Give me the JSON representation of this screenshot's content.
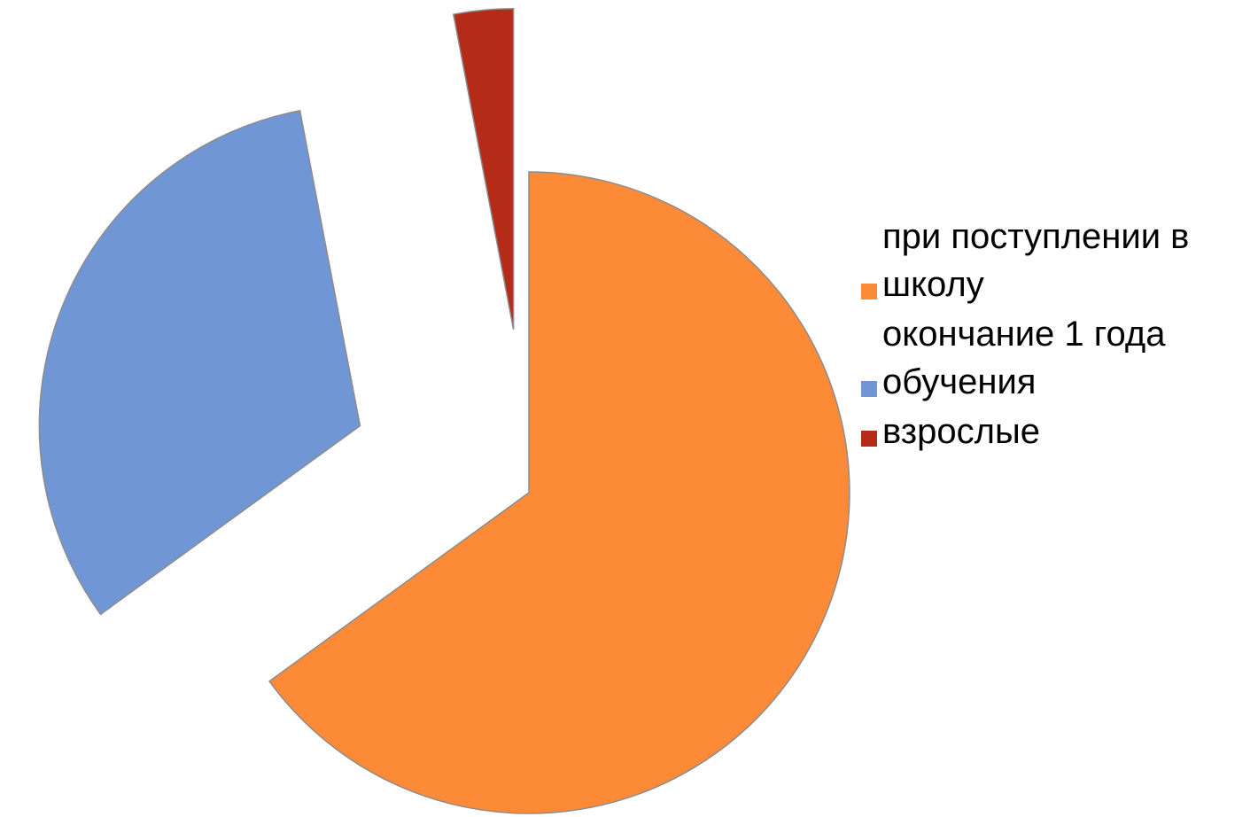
{
  "colors": {
    "orange": "#fd8a37",
    "blue": "#7096d5",
    "red": "#b42b17",
    "edge": "#8c8c8c"
  },
  "chart_data": {
    "type": "pie",
    "title": "",
    "legend_position": "right",
    "exploded": true,
    "start_angle_deg": 0,
    "direction": "clockwise",
    "slices": [
      {
        "label": "при поступлении в школу",
        "value": 65,
        "color": "#fd8a37"
      },
      {
        "label": "окончание 1 года обучения",
        "value": 32,
        "color": "#7096d5"
      },
      {
        "label": "взрослые",
        "value": 3,
        "color": "#b42b17"
      }
    ]
  }
}
